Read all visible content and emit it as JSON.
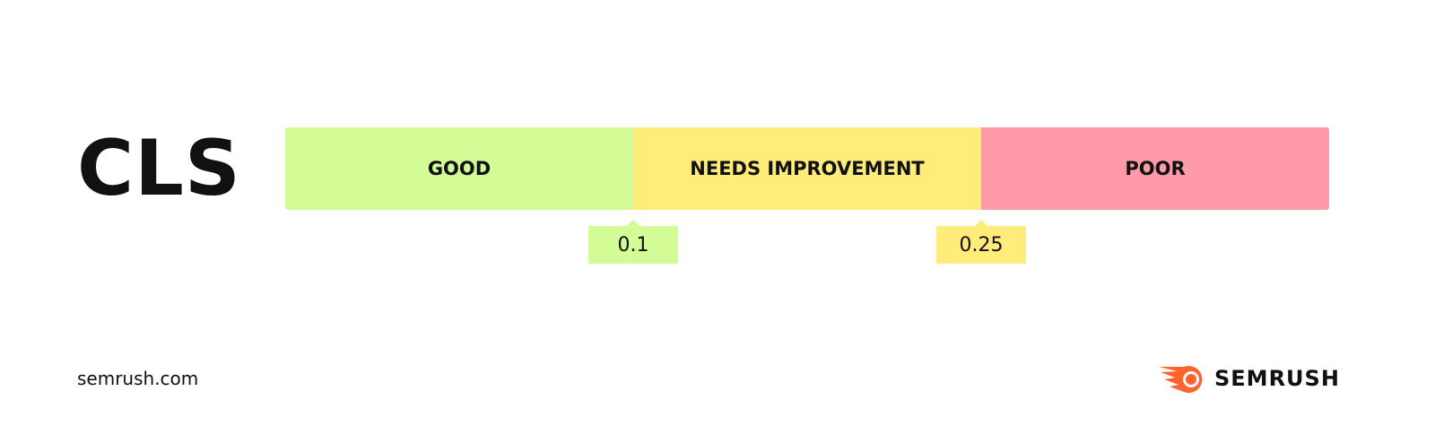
{
  "title": "CLS",
  "segments": [
    {
      "label": "GOOD",
      "color": "#d4fc96"
    },
    {
      "label": "NEEDS IMPROVEMENT",
      "color": "#ffec7a"
    },
    {
      "label": "POOR",
      "color": "#ff9aa8"
    }
  ],
  "thresholds": [
    {
      "label": "0.1",
      "color": "#d4fc96"
    },
    {
      "label": "0.25",
      "color": "#ffec7a"
    }
  ],
  "footer": {
    "site": "semrush.com",
    "logo_text": "SEMRUSH",
    "logo_color": "#ff642d"
  }
}
